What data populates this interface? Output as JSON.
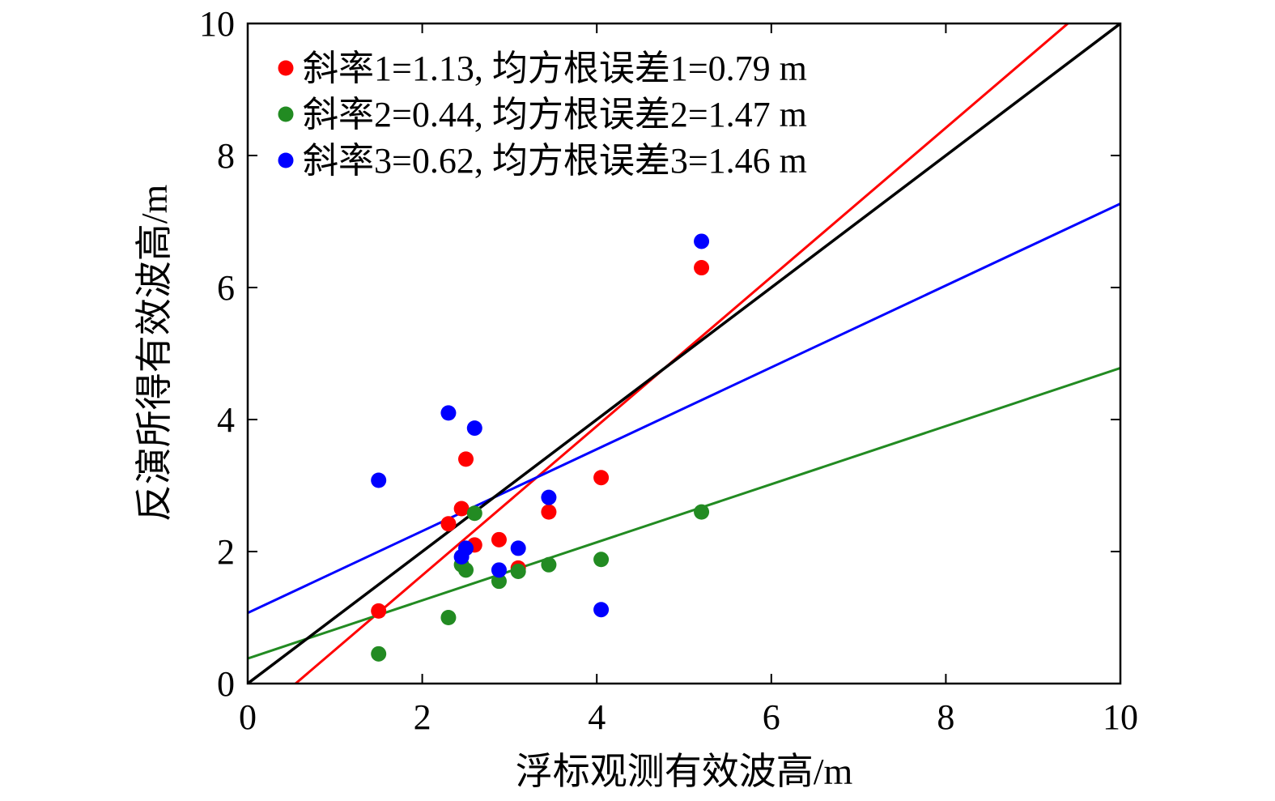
{
  "chart_data": {
    "type": "scatter",
    "xlabel": "浮标观测有效波高/m",
    "ylabel": "反演所得有效波高/m",
    "xlim": [
      0,
      10
    ],
    "ylim": [
      0,
      10
    ],
    "x_ticks": [
      "0",
      "2",
      "4",
      "6",
      "8",
      "10"
    ],
    "y_ticks": [
      "0",
      "2",
      "4",
      "6",
      "8",
      "10"
    ],
    "grid": false,
    "legend_position": "top-left",
    "x": [
      1.5,
      2.3,
      2.45,
      2.5,
      2.6,
      2.88,
      3.1,
      3.45,
      4.05,
      5.2
    ],
    "series": [
      {
        "name": "斜率1=1.13, 均方根误差1=0.79 m",
        "color": "#ff0000",
        "values": [
          1.1,
          2.42,
          2.65,
          3.4,
          2.1,
          2.18,
          1.75,
          2.6,
          3.12,
          6.3
        ],
        "fit": {
          "slope": 1.13,
          "intercept": -0.62
        }
      },
      {
        "name": "斜率2=0.44, 均方根误差2=1.47 m",
        "color": "#228b22",
        "values": [
          0.45,
          1.0,
          1.8,
          1.72,
          2.58,
          1.55,
          1.7,
          1.8,
          1.88,
          2.6
        ],
        "fit": {
          "slope": 0.44,
          "intercept": 0.38
        }
      },
      {
        "name": "斜率3=0.62, 均方根误差3=1.46 m",
        "color": "#0000ff",
        "values": [
          3.08,
          4.1,
          1.92,
          2.05,
          3.87,
          1.72,
          2.05,
          2.82,
          1.12,
          6.7
        ],
        "fit": {
          "slope": 0.62,
          "intercept": 1.07
        }
      }
    ],
    "reference_line": {
      "color": "#000000",
      "slope": 1,
      "intercept": 0
    }
  }
}
